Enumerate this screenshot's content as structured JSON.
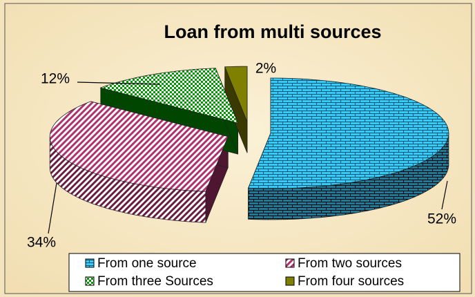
{
  "chart_data": {
    "type": "pie3d",
    "title": "Loan from multi sources",
    "categories": [
      "From one source",
      "From two sources",
      "From three Sources",
      "From four sources"
    ],
    "values": [
      52,
      34,
      12,
      2
    ],
    "value_labels": [
      "52%",
      "34%",
      "12%",
      "2%"
    ],
    "colors": [
      "#33ccff",
      "#b03070",
      "#009900",
      "#808000"
    ],
    "legend": "bottom"
  }
}
